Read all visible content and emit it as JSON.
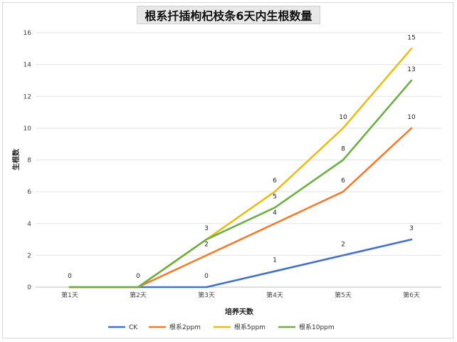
{
  "chart_data": {
    "type": "line",
    "title": "根系扦插枸杞枝条6天内生根数量",
    "xlabel": "培养天数",
    "ylabel": "生根数",
    "categories": [
      "第1天",
      "第2天",
      "第3天",
      "第4天",
      "第5天",
      "第6天"
    ],
    "yticks": [
      "0",
      "2",
      "4",
      "6",
      "8",
      "10",
      "12",
      "14",
      "16"
    ],
    "ylim": [
      0,
      16
    ],
    "grid": true,
    "legend_position": "bottom",
    "series": [
      {
        "name": "CK",
        "color": "#4472C4",
        "values": [
          0,
          0,
          0,
          1,
          2,
          3
        ]
      },
      {
        "name": "根系2ppm",
        "color": "#ED7D31",
        "values": [
          0,
          0,
          2,
          4,
          6,
          10
        ]
      },
      {
        "name": "根系5ppm",
        "color": "#E6BC1E",
        "values": [
          0,
          0,
          3,
          6,
          10,
          15
        ]
      },
      {
        "name": "根系10ppm",
        "color": "#70AD47",
        "values": [
          0,
          0,
          3,
          5,
          8,
          13
        ]
      }
    ],
    "data_labels": [
      {
        "series": 0,
        "index": 0,
        "text": "0"
      },
      {
        "series": 0,
        "index": 1,
        "text": "0"
      },
      {
        "series": 0,
        "index": 2,
        "text": "0"
      },
      {
        "series": 0,
        "index": 3,
        "text": "1"
      },
      {
        "series": 0,
        "index": 4,
        "text": "2"
      },
      {
        "series": 0,
        "index": 5,
        "text": "3"
      },
      {
        "series": 1,
        "index": 2,
        "text": "2"
      },
      {
        "series": 1,
        "index": 3,
        "text": "4"
      },
      {
        "series": 1,
        "index": 4,
        "text": "6"
      },
      {
        "series": 1,
        "index": 5,
        "text": "10"
      },
      {
        "series": 2,
        "index": 2,
        "text": "3"
      },
      {
        "series": 2,
        "index": 3,
        "text": "6"
      },
      {
        "series": 2,
        "index": 4,
        "text": "10"
      },
      {
        "series": 2,
        "index": 5,
        "text": "15"
      },
      {
        "series": 3,
        "index": 3,
        "text": "5"
      },
      {
        "series": 3,
        "index": 4,
        "text": "8"
      },
      {
        "series": 3,
        "index": 5,
        "text": "13"
      }
    ]
  }
}
